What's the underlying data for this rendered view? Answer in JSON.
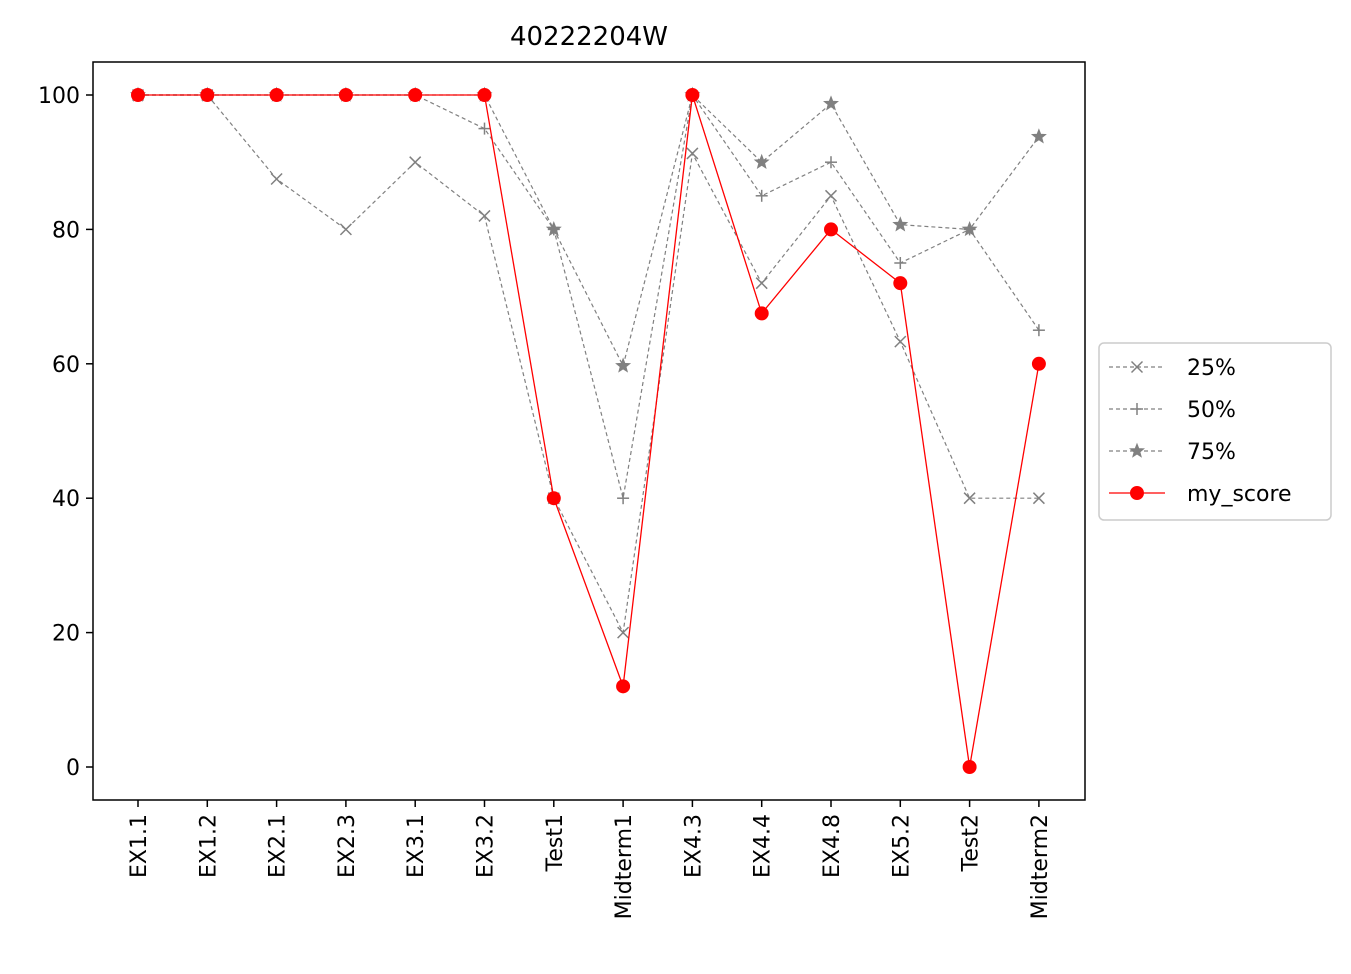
{
  "chart_data": {
    "type": "line",
    "title": "40222204W",
    "xlabel": "",
    "ylabel": "",
    "categories": [
      "EX1.1",
      "EX1.2",
      "EX2.1",
      "EX2.3",
      "EX3.1",
      "EX3.2",
      "Test1",
      "Midterm1",
      "EX4.3",
      "EX4.4",
      "EX4.8",
      "EX5.2",
      "Test2",
      "Midterm2"
    ],
    "yticks": [
      0,
      20,
      40,
      60,
      80,
      100
    ],
    "ylim": [
      -5,
      105
    ],
    "grid": false,
    "legend_position": "center-right-outside",
    "series": [
      {
        "name": "25%",
        "marker": "x",
        "line_style": "dashed",
        "color": "#808080",
        "values": [
          100,
          100,
          87.5,
          80,
          90,
          82,
          40,
          20,
          91.3,
          72,
          85,
          63.3,
          40,
          40
        ]
      },
      {
        "name": "50%",
        "marker": "plus",
        "line_style": "dashed",
        "color": "#808080",
        "values": [
          100,
          100,
          100,
          100,
          100,
          95,
          80,
          40,
          100,
          85,
          90,
          75,
          80,
          65
        ]
      },
      {
        "name": "75%",
        "marker": "star",
        "line_style": "dashed",
        "color": "#808080",
        "values": [
          100,
          100,
          100,
          100,
          100,
          100,
          80,
          59.7,
          100,
          90,
          98.7,
          80.7,
          80,
          93.8
        ]
      },
      {
        "name": "my_score",
        "marker": "circle",
        "line_style": "solid",
        "color": "#ff0000",
        "values": [
          100,
          100,
          100,
          100,
          100,
          100,
          40,
          12,
          100,
          67.5,
          80,
          72,
          0,
          60
        ]
      }
    ]
  }
}
